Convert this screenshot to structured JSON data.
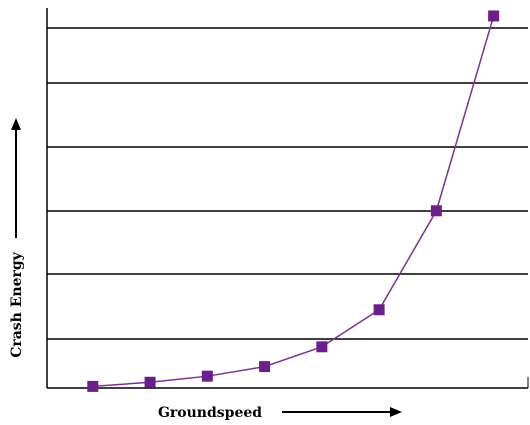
{
  "chart_data": {
    "type": "line",
    "title": "",
    "xlabel": "Groundspeed",
    "ylabel": "Crash Energy",
    "x": [
      1,
      2,
      3,
      4,
      5,
      6,
      7,
      8
    ],
    "series": [
      {
        "values": [
          0.0,
          0.13,
          0.32,
          0.62,
          1.24,
          2.4,
          5.5,
          11.6
        ]
      }
    ],
    "xlim": [
      0.2,
      8.6
    ],
    "ylim": [
      -0.05,
      11.85
    ],
    "grid": "horizontal",
    "colors": {
      "series": "#7b3294",
      "marker": "#6b1f8a",
      "grid": "#000000"
    }
  }
}
